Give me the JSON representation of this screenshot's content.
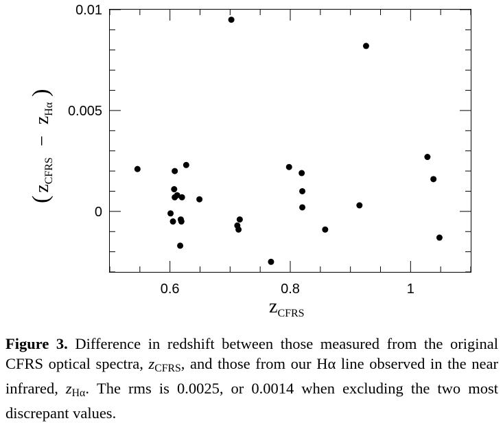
{
  "chart_data": {
    "type": "scatter",
    "title": "",
    "xlabel": "z_CFRS",
    "ylabel": "(z_CFRS − z_Hα)",
    "xlim": [
      0.5,
      1.1
    ],
    "ylim": [
      -0.003,
      0.01
    ],
    "x_ticks": [
      {
        "value": 0.6,
        "label": "0.6"
      },
      {
        "value": 0.8,
        "label": "0.8"
      },
      {
        "value": 1.0,
        "label": "1"
      }
    ],
    "y_ticks": [
      {
        "value": 0.0,
        "label": "0"
      },
      {
        "value": 0.005,
        "label": "0.005"
      },
      {
        "value": 0.01,
        "label": "0.01"
      }
    ],
    "x_minor_step": 0.05,
    "y_minor_step": 0.001,
    "grid": false,
    "points": [
      {
        "x": 0.546,
        "y": 0.0021
      },
      {
        "x": 0.601,
        "y": -0.0001
      },
      {
        "x": 0.605,
        "y": -0.0005
      },
      {
        "x": 0.607,
        "y": 0.0011
      },
      {
        "x": 0.608,
        "y": 0.002
      },
      {
        "x": 0.608,
        "y": 0.0007
      },
      {
        "x": 0.612,
        "y": 0.0008
      },
      {
        "x": 0.617,
        "y": -0.0017
      },
      {
        "x": 0.618,
        "y": -0.0004
      },
      {
        "x": 0.619,
        "y": -0.0005
      },
      {
        "x": 0.62,
        "y": 0.0007
      },
      {
        "x": 0.627,
        "y": 0.0023
      },
      {
        "x": 0.649,
        "y": 0.0006
      },
      {
        "x": 0.702,
        "y": 0.0095
      },
      {
        "x": 0.712,
        "y": -0.0007
      },
      {
        "x": 0.714,
        "y": -0.0009
      },
      {
        "x": 0.716,
        "y": -0.0004
      },
      {
        "x": 0.768,
        "y": -0.0025
      },
      {
        "x": 0.798,
        "y": 0.0022
      },
      {
        "x": 0.819,
        "y": 0.0019
      },
      {
        "x": 0.82,
        "y": 0.001
      },
      {
        "x": 0.82,
        "y": 0.0002
      },
      {
        "x": 0.858,
        "y": -0.0009
      },
      {
        "x": 0.915,
        "y": 0.0003
      },
      {
        "x": 0.926,
        "y": 0.0082
      },
      {
        "x": 1.028,
        "y": 0.0027
      },
      {
        "x": 1.038,
        "y": 0.0016
      },
      {
        "x": 1.048,
        "y": -0.0013
      }
    ]
  },
  "caption": {
    "label": "Figure 3.",
    "text_1": " Difference in redshift between those measured from the original CFRS optical spectra, ",
    "zcfrs_symbol": "z",
    "zcfrs_sub": "CFRS",
    "text_2": ", and those from our Hα line observed in the near infrared, ",
    "zha_symbol": "z",
    "zha_sub": "Hα",
    "text_3": ". The rms is 0.0025, or 0.0014 when excluding the two most discrepant values."
  },
  "axis_text": {
    "x_symbol": "z",
    "x_sub": "CFRS",
    "y_open": "(",
    "y_sym1": "z",
    "y_sub1": "CFRS",
    "y_minus": "−",
    "y_sym2": "z",
    "y_sub2": "Hα",
    "y_close": ")"
  },
  "colors": {
    "ink": "#000000",
    "background": "#ffffff"
  }
}
